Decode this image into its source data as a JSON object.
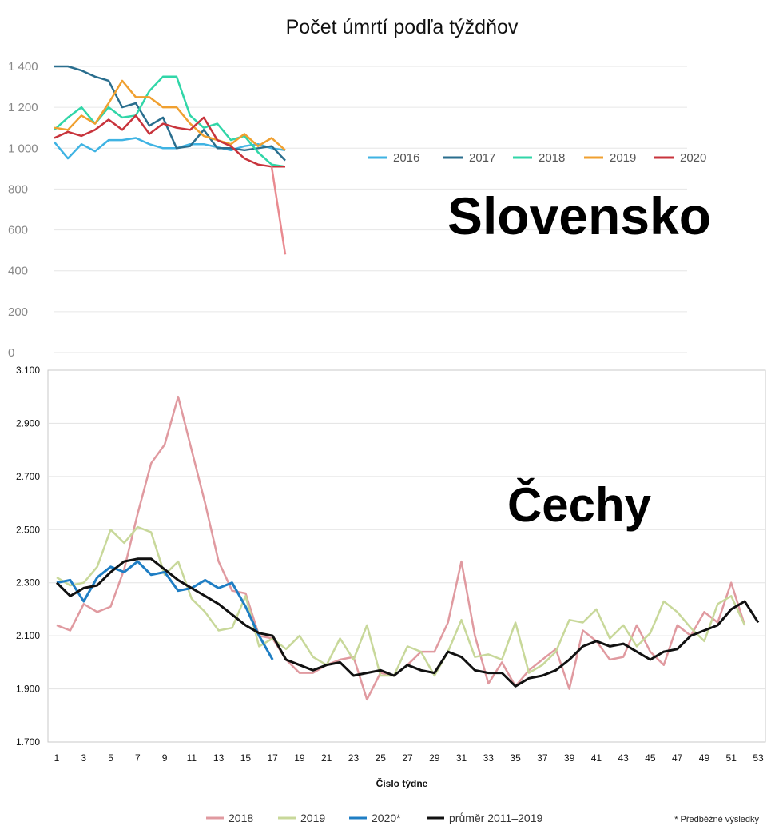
{
  "chart_data": [
    {
      "type": "line",
      "title": "Počet úmrtí podľa týždňov",
      "label": "Slovensko",
      "x": [
        1,
        2,
        3,
        4,
        5,
        6,
        7,
        8,
        9,
        10,
        11,
        12,
        13,
        14,
        15,
        16,
        17,
        18
      ],
      "ylim": [
        0,
        1400
      ],
      "yticks": [
        "1 400",
        "1 200",
        "1 000",
        "800",
        "600",
        "400",
        "200",
        "0"
      ],
      "ytick_values": [
        1400,
        1200,
        1000,
        800,
        600,
        400,
        200,
        0
      ],
      "grid": true,
      "legend_position": "right",
      "series": [
        {
          "name": "2016",
          "color": "#3fb3e3",
          "values": [
            1030,
            950,
            1020,
            985,
            1040,
            1040,
            1050,
            1020,
            1000,
            1000,
            1020,
            1020,
            1005,
            990,
            1010,
            1020,
            1000,
            990
          ]
        },
        {
          "name": "2017",
          "color": "#2a6e8e",
          "values": [
            1400,
            1400,
            1380,
            1350,
            1330,
            1200,
            1220,
            1110,
            1150,
            1000,
            1010,
            1090,
            1000,
            1000,
            990,
            1000,
            1010,
            940
          ]
        },
        {
          "name": "2018",
          "color": "#31d6a8",
          "values": [
            1090,
            1150,
            1200,
            1120,
            1200,
            1150,
            1160,
            1280,
            1350,
            1350,
            1160,
            1100,
            1120,
            1040,
            1060,
            980,
            920,
            910
          ]
        },
        {
          "name": "2019",
          "color": "#f0a030",
          "values": [
            1100,
            1090,
            1160,
            1120,
            1220,
            1330,
            1250,
            1250,
            1200,
            1200,
            1120,
            1060,
            1040,
            1020,
            1070,
            1010,
            1050,
            990
          ]
        },
        {
          "name": "2020",
          "color": "#c8343c",
          "values": [
            1050,
            1080,
            1060,
            1090,
            1140,
            1090,
            1160,
            1070,
            1120,
            1100,
            1090,
            1150,
            1040,
            1010,
            950,
            920,
            910,
            910
          ]
        },
        {
          "name": "",
          "color": "#e98a90",
          "x": [
            17,
            18
          ],
          "values": [
            910,
            480
          ]
        }
      ]
    },
    {
      "type": "line",
      "label": "Čechy",
      "xlabel": "Číslo týdne",
      "ylim": [
        1700,
        3100
      ],
      "yticks": [
        "3.100",
        "2.900",
        "2.700",
        "2.500",
        "2.300",
        "2.100",
        "1.900",
        "1.700"
      ],
      "ytick_values": [
        3100,
        2900,
        2700,
        2500,
        2300,
        2100,
        1900,
        1700
      ],
      "xticks": [
        "1",
        "3",
        "5",
        "7",
        "9",
        "11",
        "13",
        "15",
        "17",
        "19",
        "21",
        "23",
        "25",
        "27",
        "29",
        "31",
        "33",
        "35",
        "37",
        "39",
        "41",
        "43",
        "45",
        "47",
        "49",
        "51",
        "53"
      ],
      "grid": true,
      "legend_position": "bottom",
      "note": "* Předběžné výsledky",
      "series": [
        {
          "name": "2018",
          "color": "#e09aa0",
          "width": 2.5,
          "x": [
            1,
            2,
            3,
            4,
            5,
            6,
            7,
            8,
            9,
            10,
            11,
            12,
            13,
            14,
            15,
            16,
            17,
            18,
            19,
            20,
            21,
            22,
            23,
            24,
            25,
            26,
            27,
            28,
            29,
            30,
            31,
            32,
            33,
            34,
            35,
            36,
            37,
            38,
            39,
            40,
            41,
            42,
            43,
            44,
            45,
            46,
            47,
            48,
            49,
            50,
            51,
            52
          ],
          "values": [
            2140,
            2120,
            2220,
            2190,
            2210,
            2350,
            2560,
            2750,
            2820,
            3000,
            2800,
            2600,
            2380,
            2270,
            2260,
            2100,
            2090,
            2010,
            1960,
            1960,
            1990,
            2010,
            2020,
            1860,
            1960,
            1950,
            1990,
            2040,
            2040,
            2150,
            2380,
            2100,
            1920,
            2000,
            1910,
            1970,
            2010,
            2050,
            1900,
            2120,
            2080,
            2010,
            2020,
            2140,
            2040,
            1990,
            2140,
            2100,
            2190,
            2150,
            2300,
            2140
          ]
        },
        {
          "name": "2019",
          "color": "#c8d89a",
          "width": 2.5,
          "x": [
            1,
            2,
            3,
            4,
            5,
            6,
            7,
            8,
            9,
            10,
            11,
            12,
            13,
            14,
            15,
            16,
            17,
            18,
            19,
            20,
            21,
            22,
            23,
            24,
            25,
            26,
            27,
            28,
            29,
            30,
            31,
            32,
            33,
            34,
            35,
            36,
            37,
            38,
            39,
            40,
            41,
            42,
            43,
            44,
            45,
            46,
            47,
            48,
            49,
            50,
            51,
            52
          ],
          "values": [
            2320,
            2290,
            2300,
            2360,
            2500,
            2450,
            2510,
            2490,
            2330,
            2380,
            2240,
            2190,
            2120,
            2130,
            2250,
            2060,
            2090,
            2050,
            2100,
            2020,
            1990,
            2090,
            2010,
            2140,
            1950,
            1950,
            2060,
            2040,
            1950,
            2040,
            2160,
            2020,
            2030,
            2010,
            2150,
            1960,
            1990,
            2040,
            2160,
            2150,
            2200,
            2090,
            2140,
            2060,
            2110,
            2230,
            2190,
            2130,
            2080,
            2220,
            2250,
            2140
          ]
        },
        {
          "name": "2020*",
          "color": "#1f7ec4",
          "width": 3,
          "x": [
            1,
            2,
            3,
            4,
            5,
            6,
            7,
            8,
            9,
            10,
            11,
            12,
            13,
            14,
            15,
            16,
            17
          ],
          "values": [
            2300,
            2310,
            2230,
            2320,
            2360,
            2340,
            2380,
            2330,
            2340,
            2270,
            2280,
            2310,
            2280,
            2300,
            2210,
            2100,
            2010
          ]
        },
        {
          "name": "průměr 2011–2019",
          "color": "#111111",
          "width": 3,
          "x": [
            1,
            2,
            3,
            4,
            5,
            6,
            7,
            8,
            9,
            10,
            11,
            12,
            13,
            14,
            15,
            16,
            17,
            18,
            19,
            20,
            21,
            22,
            23,
            24,
            25,
            26,
            27,
            28,
            29,
            30,
            31,
            32,
            33,
            34,
            35,
            36,
            37,
            38,
            39,
            40,
            41,
            42,
            43,
            44,
            45,
            46,
            47,
            48,
            49,
            50,
            51,
            52,
            53
          ],
          "values": [
            2300,
            2250,
            2280,
            2290,
            2340,
            2380,
            2390,
            2390,
            2350,
            2310,
            2280,
            2250,
            2220,
            2180,
            2140,
            2110,
            2100,
            2010,
            1990,
            1970,
            1990,
            2000,
            1950,
            1960,
            1970,
            1950,
            1990,
            1970,
            1960,
            2040,
            2020,
            1970,
            1960,
            1960,
            1910,
            1940,
            1950,
            1970,
            2010,
            2060,
            2080,
            2060,
            2070,
            2040,
            2010,
            2040,
            2050,
            2100,
            2120,
            2140,
            2200,
            2230,
            2150
          ]
        }
      ]
    }
  ]
}
